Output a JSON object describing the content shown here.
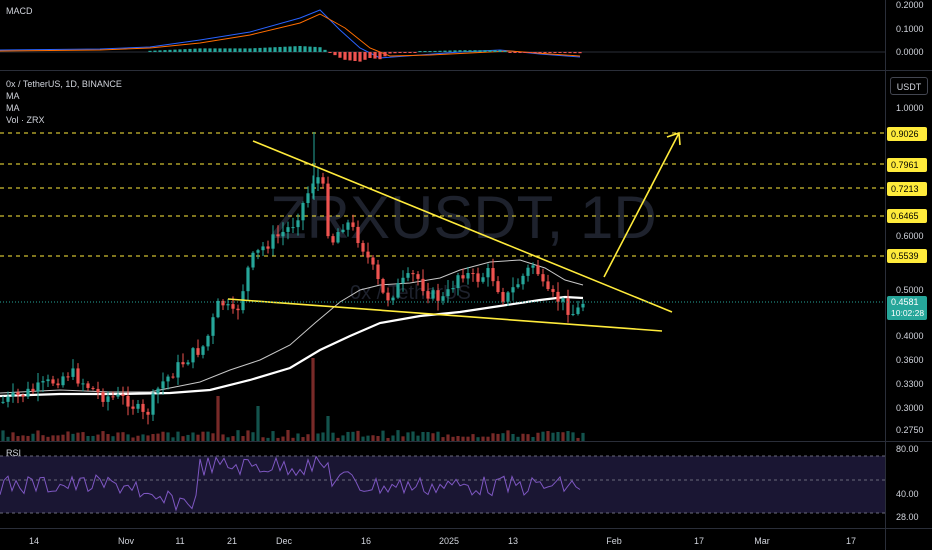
{
  "macd_pane": {
    "label": "MACD",
    "axis_ticks": [
      "0.2000",
      "0.1000",
      "0.0000"
    ]
  },
  "main_pane": {
    "symbol_line": "0x / TetherUS, 1D, BINANCE",
    "indicators": [
      "MA",
      "MA",
      "Vol · ZRX"
    ],
    "currency_button": "USDT",
    "watermark": "ZRXUSDT, 1D",
    "watermark_sub": "0x / TetherUS",
    "axis_ticks": [
      "1.0000",
      "0.6000",
      "0.5000",
      "0.4000",
      "0.3600",
      "0.3300",
      "0.3000",
      "0.2750"
    ],
    "level_tags": [
      "0.9026",
      "0.7961",
      "0.7213",
      "0.6465",
      "0.5539"
    ],
    "price_tag": {
      "price": "0.4581",
      "countdown": "10:02:28"
    },
    "colors": {
      "up": "#26a69a",
      "down": "#ef5350",
      "trendline": "#ffeb3b",
      "ma_fast": "#c8c8c8",
      "ma_slow": "#ffffff"
    }
  },
  "rsi_pane": {
    "label": "RSI",
    "axis_ticks": [
      "80.00",
      "40.00",
      "28.00"
    ]
  },
  "time_axis": [
    "14",
    "Nov",
    "11",
    "21",
    "Dec",
    "16",
    "2025",
    "13",
    "Feb",
    "17",
    "Mar",
    "17"
  ],
  "icons": {
    "currency": "usdt-button"
  }
}
